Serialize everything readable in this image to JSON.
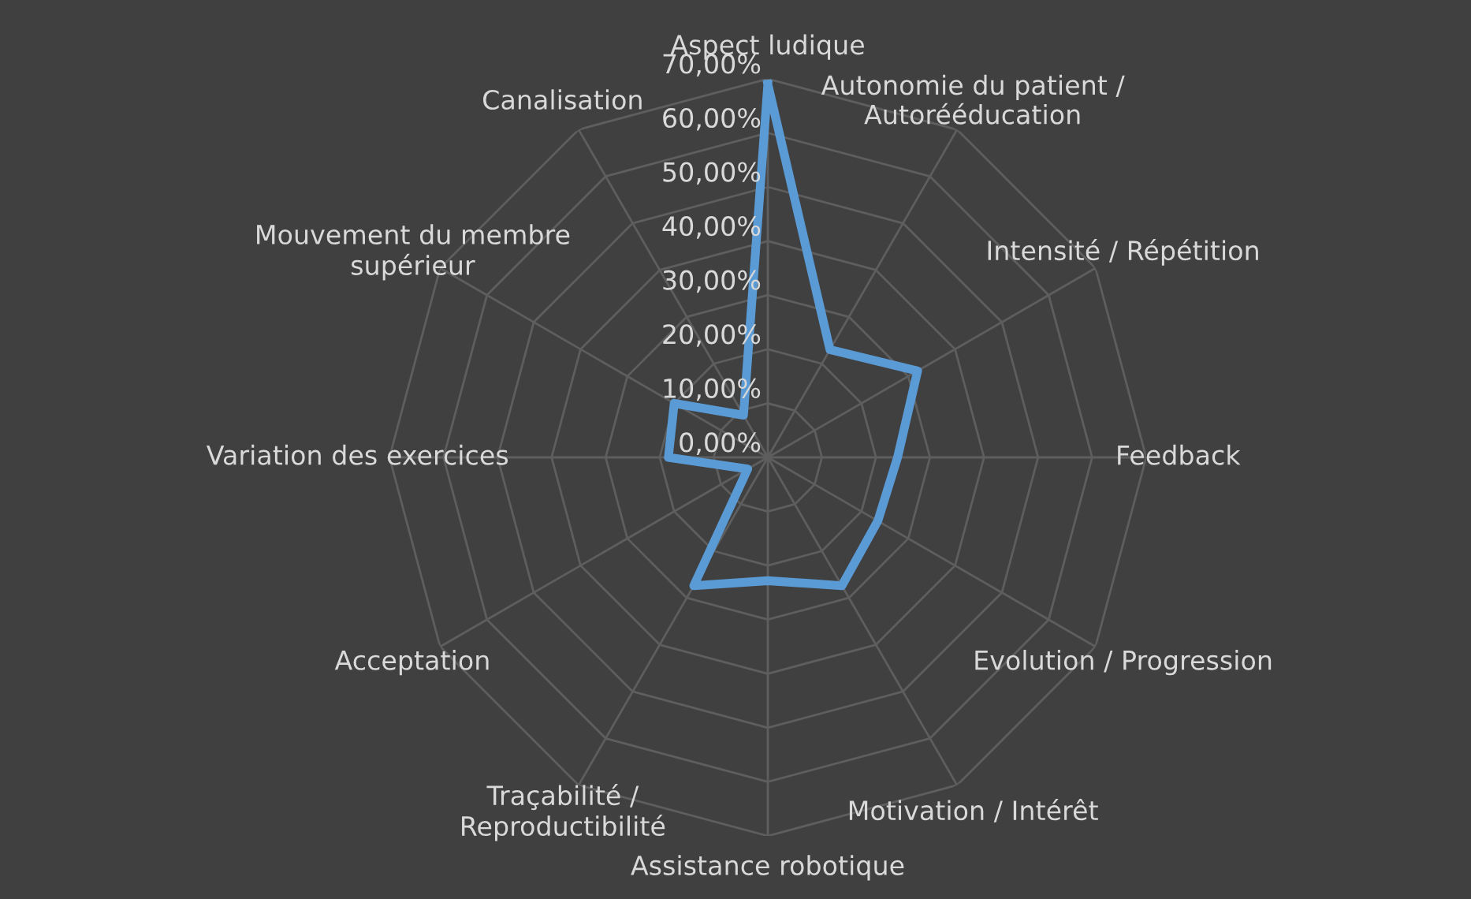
{
  "chart_data": {
    "type": "radar",
    "categories": [
      "Aspect ludique",
      "Autonomie du patient /\nAutorééducation",
      "Intensité / Répétition",
      "Feedback",
      "Evolution / Progression",
      "Motivation / Intérêt",
      "Assistance robotique",
      "Traçabilité /\nReproductibilité",
      "Acceptation",
      "Variation des exercices",
      "Mouvement du membre\nsupérieur",
      "Canalisation"
    ],
    "series": [
      {
        "color": "#5b9bd5",
        "values": [
          69,
          23,
          32,
          24,
          23.5,
          27.4,
          22.8,
          27.4,
          4.3,
          18.4,
          20,
          9
        ]
      }
    ],
    "ylim": [
      0,
      70
    ],
    "yticks": [
      {
        "value": 0,
        "label": "0,00%"
      },
      {
        "value": 10,
        "label": "10,00%"
      },
      {
        "value": 20,
        "label": "20,00%"
      },
      {
        "value": 30,
        "label": "30,00%"
      },
      {
        "value": 40,
        "label": "40,00%"
      },
      {
        "value": 50,
        "label": "50,00%"
      },
      {
        "value": 60,
        "label": "60,00%"
      },
      {
        "value": 70,
        "label": "70,00%"
      }
    ],
    "grid": true,
    "marker": "none",
    "line_style": "solid"
  }
}
